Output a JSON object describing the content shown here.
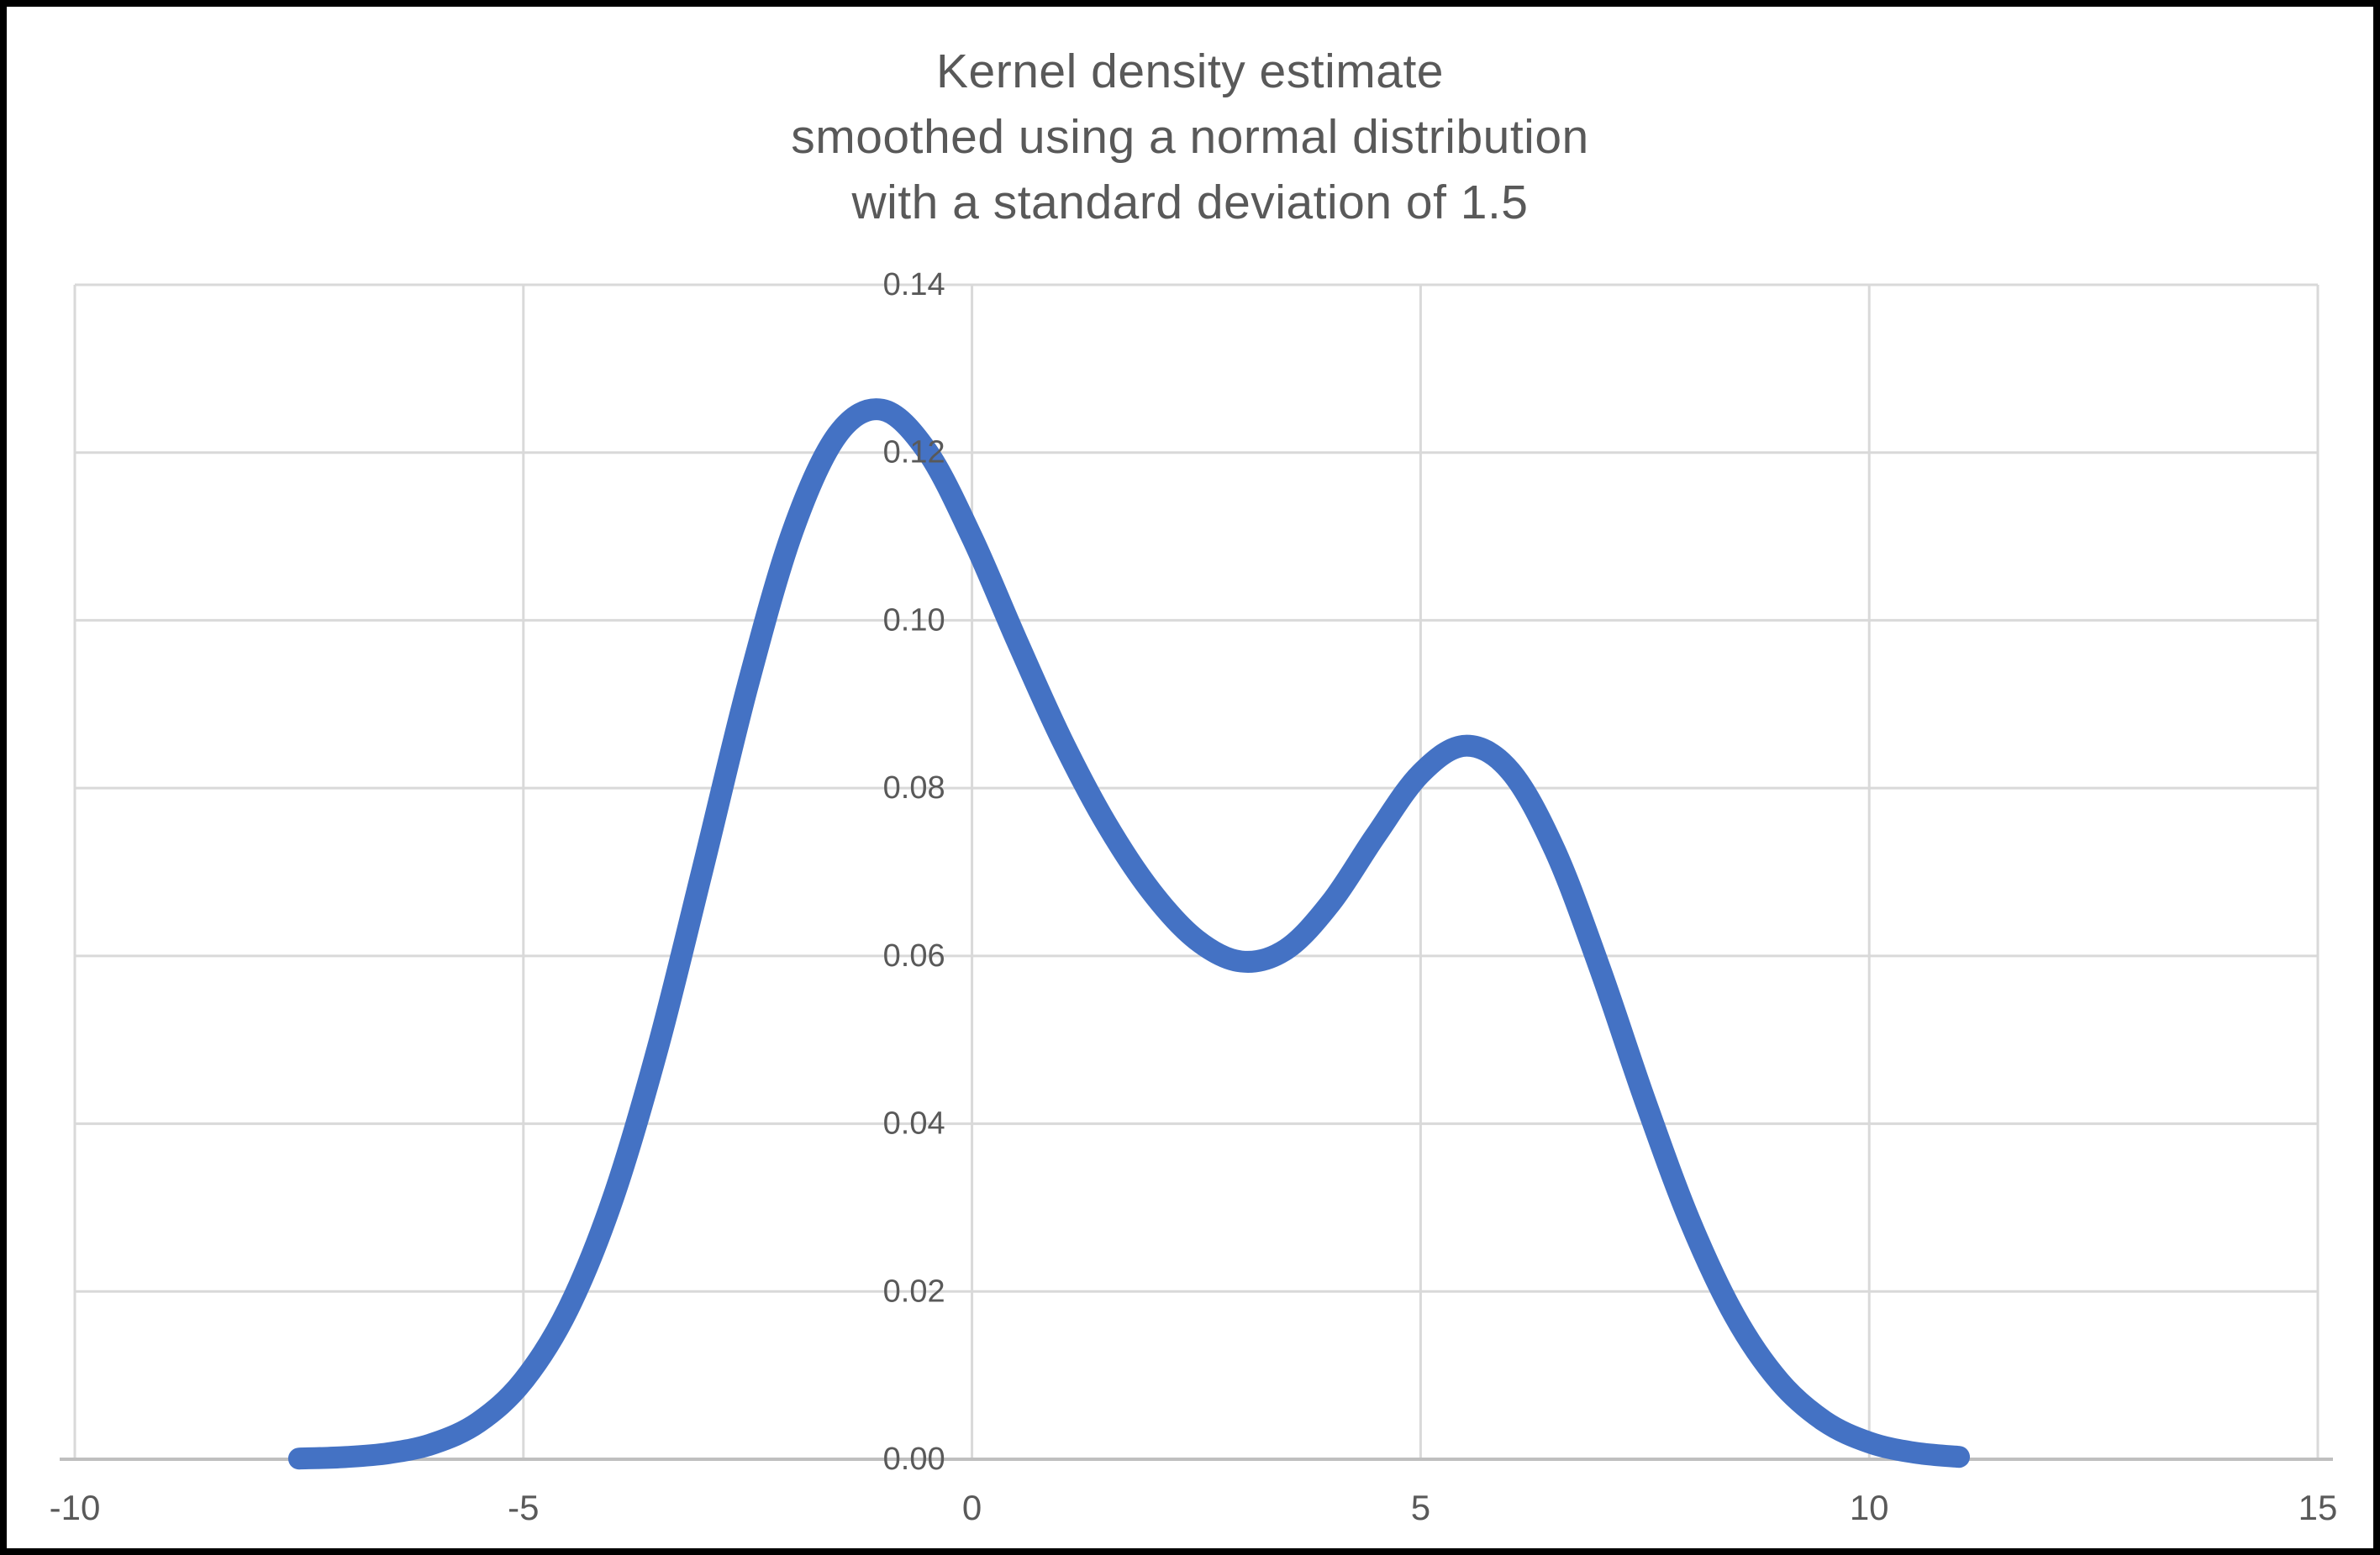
{
  "title": {
    "lines": [
      "Kernel density estimate",
      "smoothed using a normal distribution",
      "with a standard deviation of 1.5"
    ],
    "color": "#595959"
  },
  "chart_data": {
    "type": "line",
    "title": "Kernel density estimate smoothed using a normal distribution with a standard deviation of 1.5",
    "xlabel": "",
    "ylabel": "",
    "xlim": [
      -10,
      15
    ],
    "ylim": [
      0,
      0.14
    ],
    "x_ticks": [
      -10,
      -5,
      0,
      5,
      10,
      15
    ],
    "x_tick_labels": [
      "-10",
      "-5",
      "0",
      "5",
      "10",
      "15"
    ],
    "y_ticks": [
      0,
      0.02,
      0.04,
      0.06,
      0.08,
      0.1,
      0.12,
      0.14
    ],
    "y_tick_labels": [
      "0.00",
      "0.02",
      "0.04",
      "0.06",
      "0.08",
      "0.10",
      "0.12",
      "0.14"
    ],
    "grid": true,
    "legend": false,
    "series": [
      {
        "name": "kernel-density-estimate",
        "color": "#4472C4",
        "stroke_width": 26,
        "x": [
          -7.5,
          -7,
          -6.5,
          -6,
          -5.5,
          -5,
          -4.5,
          -4,
          -3.5,
          -3,
          -2.5,
          -2,
          -1.5,
          -1,
          -0.5,
          0,
          0.5,
          1,
          1.5,
          2,
          2.5,
          3,
          3.5,
          4,
          4.5,
          5,
          5.5,
          6,
          6.5,
          7,
          7.5,
          8,
          8.5,
          9,
          9.5,
          10,
          10.5,
          11
        ],
        "y": [
          8e-05,
          0.00025,
          0.00072,
          0.00188,
          0.00441,
          0.00936,
          0.01794,
          0.03115,
          0.0491,
          0.07043,
          0.0922,
          0.1106,
          0.12212,
          0.1251,
          0.12015,
          0.10989,
          0.09758,
          0.08578,
          0.07572,
          0.06767,
          0.06194,
          0.05933,
          0.06078,
          0.06633,
          0.07435,
          0.08173,
          0.08505,
          0.08203,
          0.07252,
          0.05846,
          0.04281,
          0.02843,
          0.01708,
          0.00928,
          0.00454,
          0.002,
          0.00079,
          0.00028
        ]
      }
    ],
    "annotations": {
      "peak_1": {
        "x": -1,
        "y": 0.125
      },
      "trough": {
        "x": 3,
        "y": 0.059
      },
      "peak_2": {
        "x": 5.6,
        "y": 0.085
      }
    },
    "styles": {
      "gridline_color": "#D9D9D9",
      "axis_line_color": "#BFBFBF",
      "tick_label_color": "#595959",
      "background_color": "#FFFFFF",
      "frame_border_color": "#000000"
    }
  }
}
